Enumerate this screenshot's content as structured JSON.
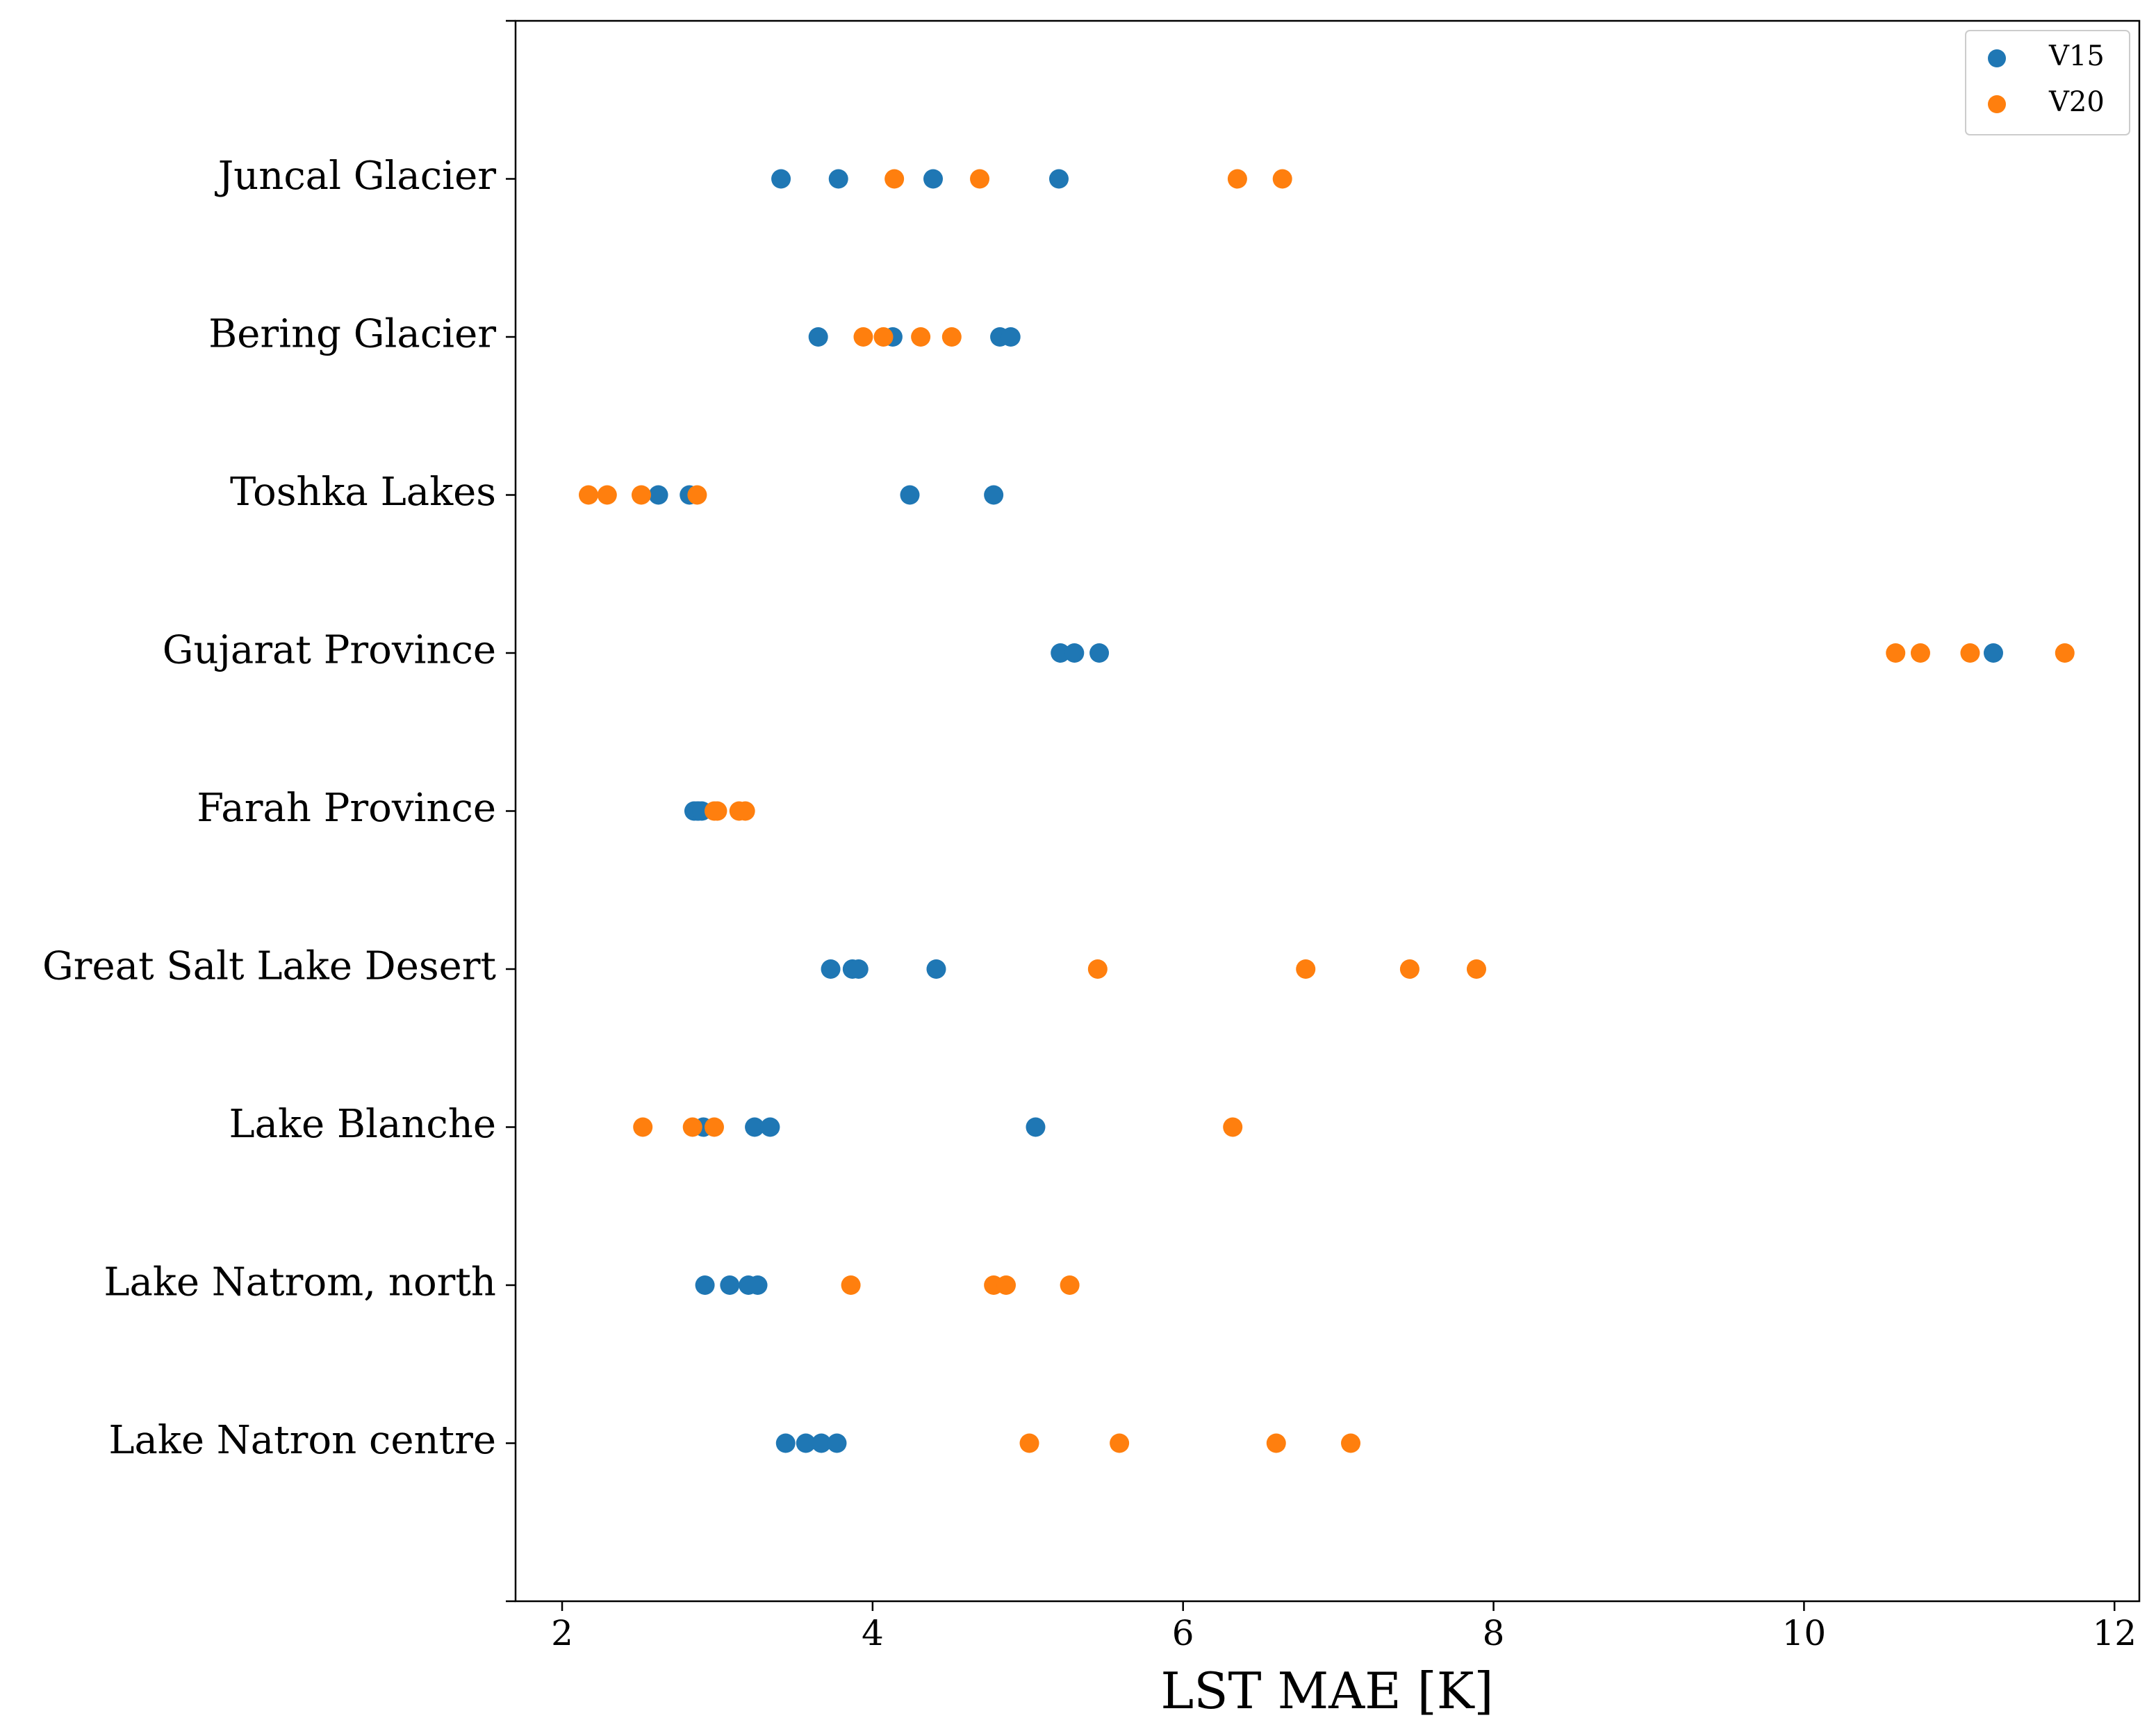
{
  "chart_data": {
    "type": "strip",
    "xlabel": "LST MAE [K]",
    "categories": [
      null,
      "Lake Natron centre",
      "Lake Natrom, north",
      "Lake Blanche",
      "Great Salt Lake Desert",
      "Farah Province",
      "Gujarat Province",
      "Toshka Lakes",
      "Bering Glacier",
      "Juncal Glacier",
      null
    ],
    "series": [
      {
        "name": "V15",
        "color": "#1f77b4",
        "values": [
          null,
          [
            3.44,
            3.57,
            3.67,
            3.77
          ],
          [
            2.92,
            3.08,
            3.2,
            3.26
          ],
          [
            2.91,
            3.24,
            3.34,
            5.05
          ],
          [
            3.73,
            3.87,
            3.91,
            4.41
          ],
          [
            2.85,
            2.87,
            2.88,
            2.9
          ],
          [
            5.21,
            5.3,
            5.46,
            11.22
          ],
          [
            2.62,
            2.82,
            4.24,
            4.78
          ],
          [
            3.65,
            4.13,
            4.82,
            4.89
          ],
          [
            3.41,
            3.78,
            4.39,
            5.2
          ],
          null
        ]
      },
      {
        "name": "V20",
        "color": "#ff7f0e",
        "values": [
          null,
          [
            5.01,
            5.59,
            6.6,
            7.08
          ],
          [
            3.86,
            4.78,
            4.86,
            5.27
          ],
          [
            2.52,
            2.84,
            2.98,
            6.32
          ],
          [
            5.45,
            6.79,
            7.46,
            7.89
          ],
          [
            2.98,
            3.0,
            3.14,
            3.18
          ],
          [
            10.59,
            10.75,
            11.07,
            11.68
          ],
          [
            2.17,
            2.29,
            2.51,
            2.87
          ],
          [
            3.94,
            4.07,
            4.31,
            4.51
          ],
          [
            4.14,
            4.69,
            6.35,
            6.64
          ],
          null
        ]
      }
    ],
    "xlim": [
      1.7,
      12.16
    ],
    "xticks": [
      2,
      4,
      6,
      8,
      10,
      12
    ],
    "legend": "upper right"
  }
}
